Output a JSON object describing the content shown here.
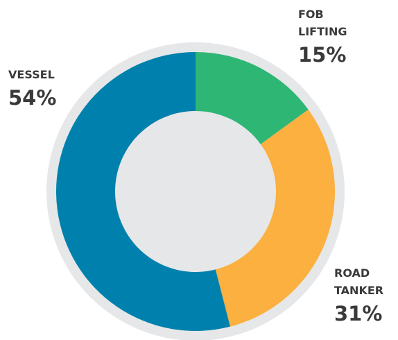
{
  "chart_data": {
    "type": "donut",
    "categories": [
      "FOB LIFTING",
      "ROAD TANKER",
      "VESSEL"
    ],
    "values": [
      15,
      31,
      54
    ],
    "value_labels": [
      "15%",
      "31%",
      "54%"
    ],
    "colors": [
      "#2db674",
      "#fbb040",
      "#0081ad"
    ]
  }
}
